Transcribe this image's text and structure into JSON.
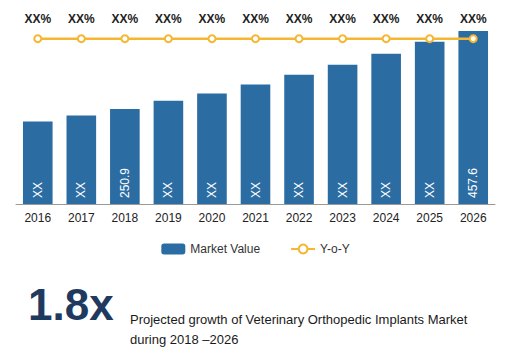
{
  "chart_data": {
    "type": "bar",
    "categories": [
      "2016",
      "2017",
      "2018",
      "2019",
      "2020",
      "2021",
      "2022",
      "2023",
      "2024",
      "2025",
      "2026"
    ],
    "series": [
      {
        "name": "Market Value",
        "type": "bar",
        "color": "#2b6ca3",
        "values": [
          218,
          234,
          250.9,
          273,
          292,
          316,
          342,
          368,
          397,
          429,
          457.6
        ],
        "value_labels": [
          "XX",
          "XX",
          "250.9",
          "XX",
          "XX",
          "XX",
          "XX",
          "XX",
          "XX",
          "XX",
          "457.6"
        ]
      },
      {
        "name": "Y-o-Y",
        "type": "line",
        "axis": "y2",
        "color": "#f5b731",
        "marker": "circle",
        "values": [
          7.6,
          7.6,
          7.6,
          7.6,
          7.6,
          7.6,
          7.6,
          7.6,
          7.6,
          7.6,
          7.6
        ],
        "value_labels": [
          "XX%",
          "XX%",
          "XX%",
          "XX%",
          "XX%",
          "XX%",
          "XX%",
          "XX%",
          "XX%",
          "XX%",
          "XX%"
        ]
      }
    ],
    "ylim": [
      0,
      460
    ],
    "yticks": [
      0,
      460
    ],
    "y2lim": [
      0,
      8
    ],
    "y2ticks": [
      0,
      8
    ],
    "grid": false,
    "tick_labels": "x",
    "data_labels": true,
    "legend": "bottom",
    "annotations": [
      "1.8x",
      "Projected growth of Veterinary Orthopedic Implants Market during 2018 –2026"
    ]
  }
}
